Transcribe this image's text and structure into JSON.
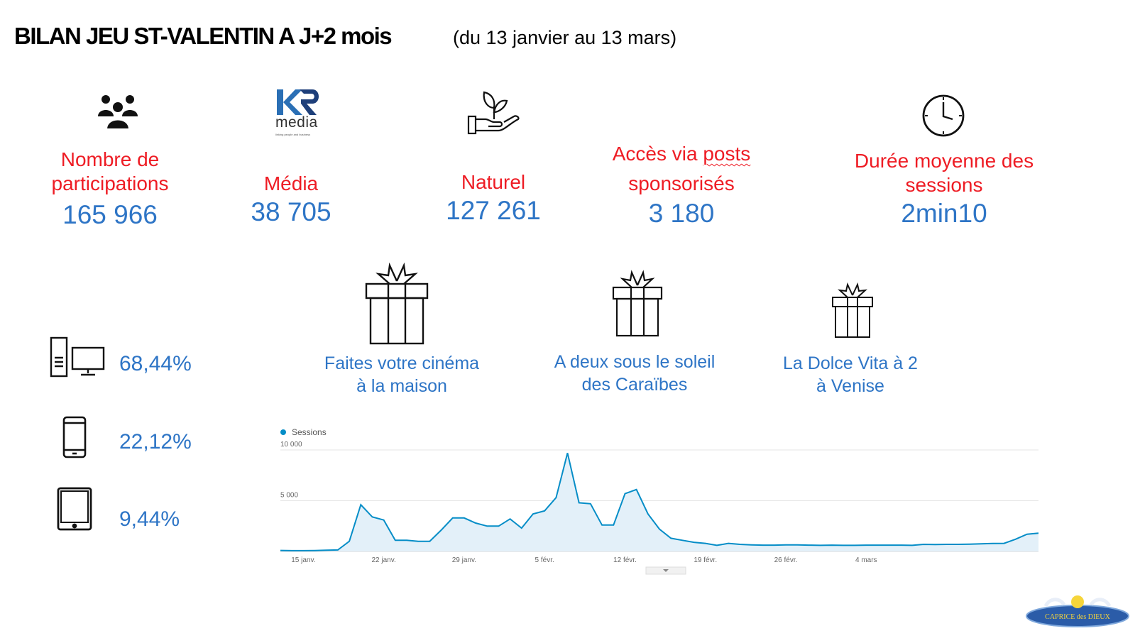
{
  "header": {
    "title": "BILAN JEU ST-VALENTIN A J+2 mois",
    "subtitle": "(du 13 janvier au 13 mars)"
  },
  "kpis": {
    "participations": {
      "label1": "Nombre de",
      "label2": "participations",
      "value": "165 966"
    },
    "media": {
      "logo_text": "media",
      "logo_tagline": "linking people and business",
      "label": "Média",
      "value": "38 705"
    },
    "naturel": {
      "label": "Naturel",
      "value": "127 261"
    },
    "sponso": {
      "label_pre": "Accès via ",
      "label_wavy": "posts",
      "label2": "sponsorisés",
      "value": "3 180"
    },
    "duree": {
      "label1": "Durée moyenne des",
      "label2": "sessions",
      "value": "2min10"
    }
  },
  "devices": {
    "desktop": "68,44%",
    "mobile": "22,12%",
    "tablet": "9,44%"
  },
  "prizes": [
    {
      "line1": "Faites votre cinéma",
      "line2": "à la maison"
    },
    {
      "line1": "A deux sous le soleil",
      "line2": "des Caraïbes"
    },
    {
      "line1": "La Dolce Vita à 2",
      "line2": "à Venise"
    }
  ],
  "logo": {
    "text": "CAPRICE des DIEUX"
  },
  "chart_data": {
    "type": "area",
    "title": "",
    "legend": "top-left",
    "series": [
      {
        "name": "Sessions",
        "color": "#058dc7",
        "values": [
          100,
          80,
          80,
          90,
          120,
          150,
          1000,
          4600,
          3400,
          3100,
          1100,
          1100,
          1000,
          1000,
          2100,
          3300,
          3300,
          2800,
          2500,
          2500,
          3200,
          2300,
          3700,
          4000,
          5300,
          9700,
          4800,
          4700,
          2600,
          2600,
          5700,
          6100,
          3700,
          2200,
          1300,
          1100,
          900,
          800,
          600,
          800,
          700,
          650,
          620,
          620,
          650,
          650,
          620,
          600,
          620,
          600,
          600,
          620,
          620,
          620,
          620,
          600,
          700,
          680,
          700,
          700,
          720,
          750,
          780,
          800,
          1200,
          1700,
          1800
        ]
      }
    ],
    "xaxis": {
      "start": "13 janv.",
      "end": "13 mars",
      "ticks": [
        "15 janv.",
        "22 janv.",
        "29 janv.",
        "5 févr.",
        "12 févr.",
        "19 févr.",
        "26 févr.",
        "4 mars"
      ]
    },
    "ylim": [
      0,
      10000
    ],
    "yticks": [
      {
        "value": 10000,
        "label": "10 000"
      },
      {
        "value": 5000,
        "label": "5 000"
      }
    ],
    "grid": true
  }
}
